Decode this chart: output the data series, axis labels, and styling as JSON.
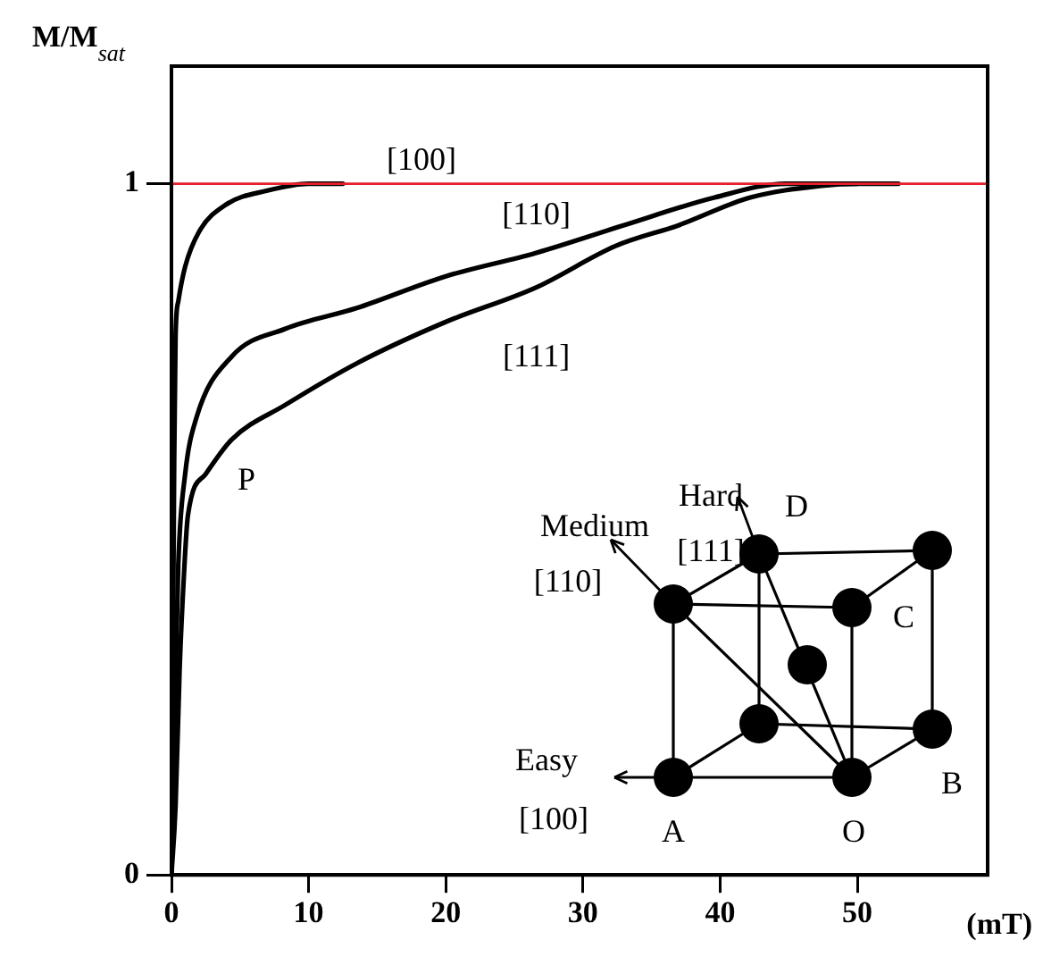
{
  "chart_data": {
    "type": "line",
    "ylabel": "M/M$_{sat}$",
    "xlabel": "(mT)",
    "xlim": [
      0,
      59.5
    ],
    "xticks": [
      0,
      10,
      20,
      30,
      40,
      50
    ],
    "ylim": [
      0,
      1.17
    ],
    "yticks": [
      0,
      1
    ],
    "grid": false,
    "legend": false,
    "marker": "none",
    "line_style": "solid",
    "series": [
      {
        "name": "[100]",
        "color": "#000000",
        "x": [
          0,
          0.1,
          0.2,
          0.3,
          0.5,
          1,
          2,
          4,
          7,
          10,
          12.5
        ],
        "values": [
          0,
          0.3,
          0.6,
          0.78,
          0.83,
          0.88,
          0.93,
          0.97,
          0.99,
          1.0,
          1.0
        ]
      },
      {
        "name": "[110]",
        "color": "#000000",
        "x": [
          0,
          0.2,
          0.5,
          1,
          1.8,
          4.4,
          8.3,
          13.5,
          20,
          26.6,
          33,
          39.6,
          44.8,
          50
        ],
        "values": [
          0,
          0.2,
          0.45,
          0.58,
          0.66,
          0.75,
          0.79,
          0.82,
          0.866,
          0.9,
          0.94,
          0.98,
          1.0,
          1.0
        ]
      },
      {
        "name": "[111]",
        "color": "#000000",
        "x": [
          0,
          0.3,
          0.6,
          0.9,
          1.2,
          2.5,
          4.4,
          8.3,
          13.5,
          20,
          26.6,
          32.4,
          37,
          42.2,
          47.4,
          50,
          53
        ],
        "values": [
          0,
          0.1,
          0.3,
          0.43,
          0.52,
          0.58,
          0.63,
          0.68,
          0.74,
          0.8,
          0.85,
          0.91,
          0.94,
          0.98,
          0.997,
          1.0,
          1.0
        ]
      }
    ],
    "ref_lines": [
      {
        "axis": "y",
        "value": 1,
        "color": "#e8202a"
      }
    ],
    "annotations": [
      "P",
      "Hard",
      "[111]",
      "Medium",
      "[110]",
      "Easy",
      "[100]",
      "A",
      "O",
      "B",
      "C",
      "D"
    ]
  }
}
